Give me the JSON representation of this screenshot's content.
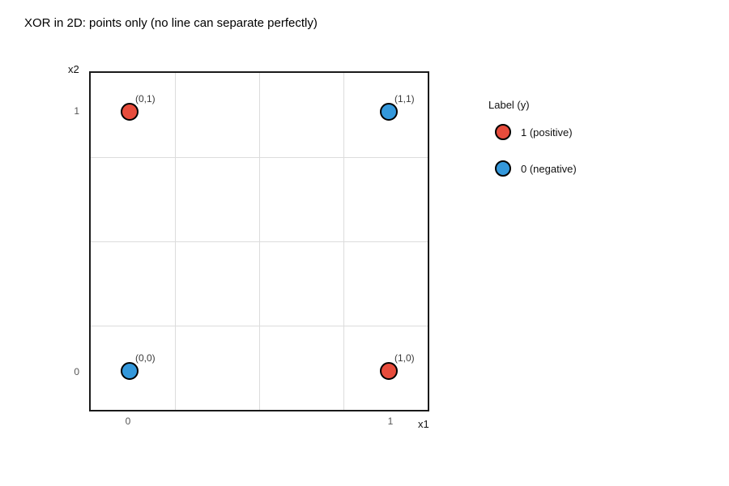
{
  "title": "XOR in 2D: points only (no line can separate perfectly)",
  "chart_data": {
    "type": "scatter",
    "title": "XOR in 2D: points only (no line can separate perfectly)",
    "xlabel": "x1",
    "ylabel": "x2",
    "xlim": [
      -0.15,
      1.15
    ],
    "ylim": [
      -0.15,
      1.15
    ],
    "grid": true,
    "legend_position": "right",
    "legend_title": "Label (y)",
    "series": [
      {
        "name": "1 (positive)",
        "color": "#e74c3c",
        "points": [
          [
            0,
            1
          ],
          [
            1,
            0
          ]
        ]
      },
      {
        "name": "0 (negative)",
        "color": "#3498db",
        "points": [
          [
            0,
            0
          ],
          [
            1,
            1
          ]
        ]
      }
    ],
    "points": [
      {
        "x": 0,
        "y": 1,
        "label_y": 1,
        "annotation": "(0,1)",
        "color": "#e74c3c"
      },
      {
        "x": 1,
        "y": 1,
        "label_y": 0,
        "annotation": "(1,1)",
        "color": "#3498db"
      },
      {
        "x": 0,
        "y": 0,
        "label_y": 0,
        "annotation": "(0,0)",
        "color": "#3498db"
      },
      {
        "x": 1,
        "y": 0,
        "label_y": 1,
        "annotation": "(1,0)",
        "color": "#e74c3c"
      }
    ]
  },
  "axes": {
    "x_title": "x1",
    "y_title": "x2",
    "x_ticks": [
      "0",
      "1"
    ],
    "y_ticks": [
      "1",
      "0"
    ]
  },
  "legend": {
    "title": "Label (y)",
    "items": [
      {
        "label": "1 (positive)",
        "color": "#e74c3c"
      },
      {
        "label": "0 (negative)",
        "color": "#3498db"
      }
    ]
  },
  "colors": {
    "positive": "#e74c3c",
    "negative": "#3498db",
    "marker_edge": "#000000",
    "frame": "#1a1a1a",
    "grid": "#dcdcdc",
    "annotation_text": "#3a3a3a",
    "tick_text": "#555555",
    "background": "#ffffff"
  }
}
